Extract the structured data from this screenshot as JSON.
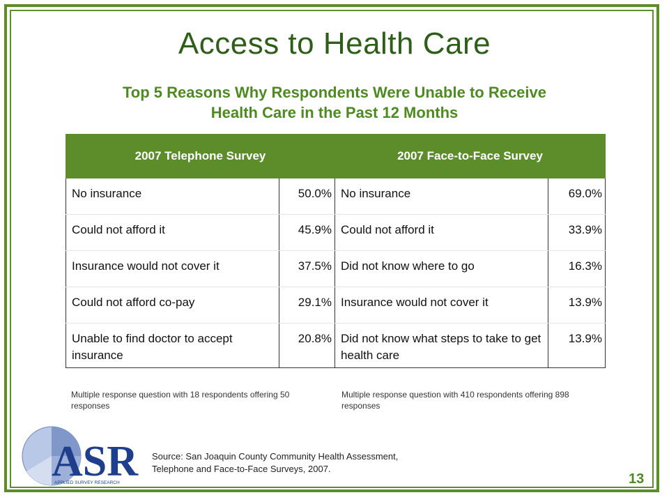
{
  "slide": {
    "title": "Access to Health Care",
    "subtitle_line1": "Top 5 Reasons Why Respondents Were Unable to Receive",
    "subtitle_line2": "Health Care in the Past 12 Months"
  },
  "table": {
    "headers": [
      "2007 Telephone Survey",
      "2007 Face-to-Face Survey"
    ],
    "rows": [
      {
        "tel_reason": "No insurance",
        "tel_pct": "50.0%",
        "f2f_reason": "No insurance",
        "f2f_pct": "69.0%"
      },
      {
        "tel_reason": "Could not afford it",
        "tel_pct": "45.9%",
        "f2f_reason": "Could not afford it",
        "f2f_pct": "33.9%"
      },
      {
        "tel_reason": "Insurance would not cover it",
        "tel_pct": "37.5%",
        "f2f_reason": "Did not know where to go",
        "f2f_pct": "16.3%"
      },
      {
        "tel_reason": "Could not afford co-pay",
        "tel_pct": "29.1%",
        "f2f_reason": "Insurance would not cover it",
        "f2f_pct": "13.9%"
      },
      {
        "tel_reason": "Unable to find doctor to accept insurance",
        "tel_pct": "20.8%",
        "f2f_reason": "Did not know what steps to take to get health care",
        "f2f_pct": "13.9%"
      }
    ]
  },
  "notes": {
    "telephone": "Multiple response question with 18 respondents offering 50 responses",
    "face_to_face": "Multiple response question with 410 respondents offering 898 responses"
  },
  "source": {
    "line1": "Source: San Joaquin County Community Health Assessment,",
    "line2": "Telephone and Face-to-Face Surveys, 2007."
  },
  "logo": {
    "text": "ASR",
    "tagline": "APPLIED SURVEY RESEARCH"
  },
  "page_number": "13",
  "colors": {
    "frame_green": "#5c8d2a",
    "title_green": "#2e5e1a",
    "subtitle_green": "#4e8a22",
    "logo_blue": "#1f3f8c"
  }
}
